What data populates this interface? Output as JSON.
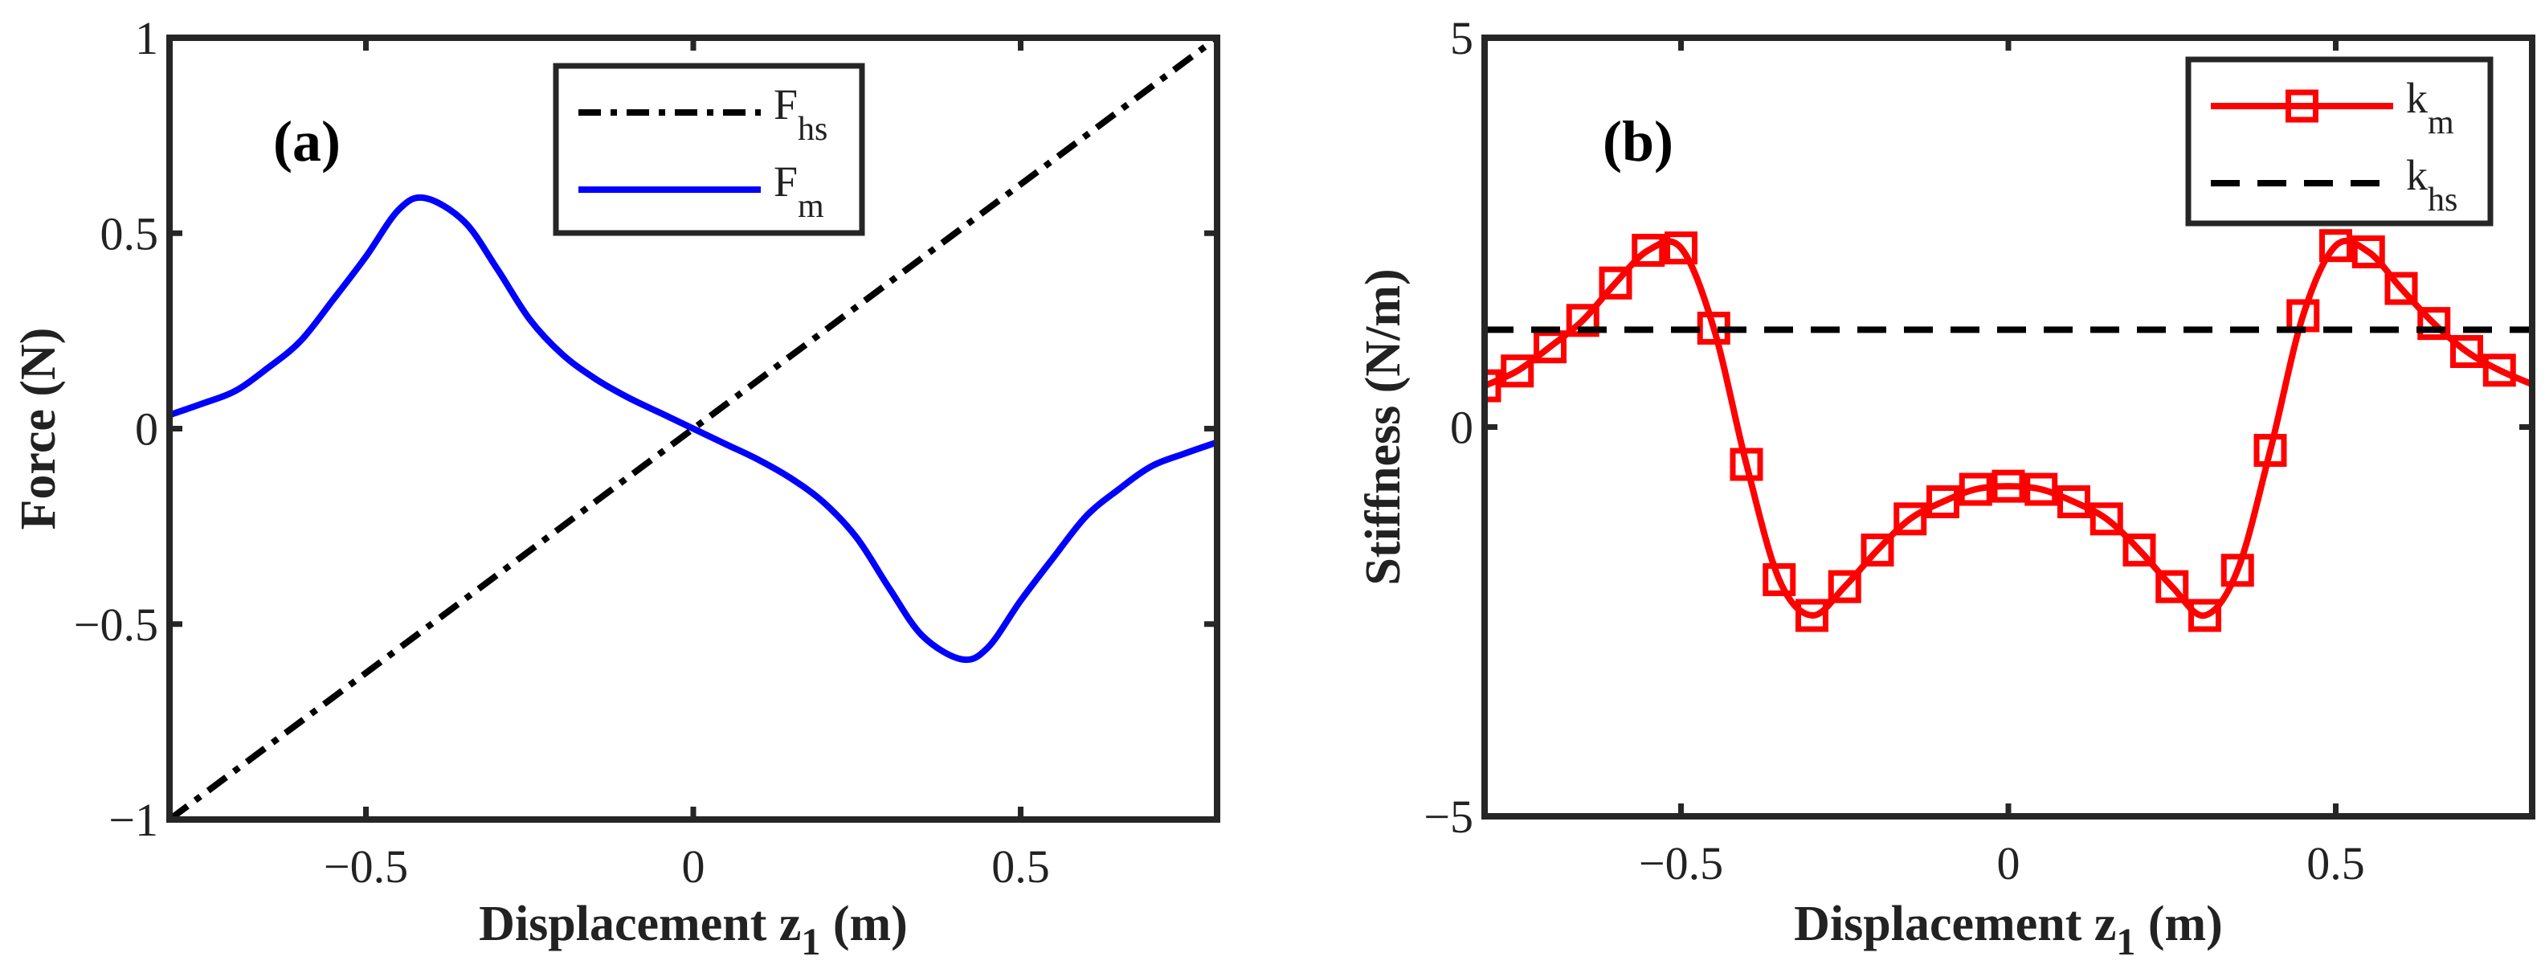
{
  "chart_data": [
    {
      "type": "line",
      "panel_label": "(a)",
      "xlabel": "Displacement z",
      "xlabel_sub": "1",
      "xlabel_unit": " (m)",
      "ylabel": "Force (N)",
      "xlim": [
        -0.8,
        0.8
      ],
      "ylim": [
        -1,
        1
      ],
      "xticks": [
        -0.5,
        0,
        0.5
      ],
      "xtick_labels": [
        "−0.5",
        "0",
        "0.5"
      ],
      "yticks": [
        -1,
        -0.5,
        0,
        0.5,
        1
      ],
      "ytick_labels": [
        "−1",
        "−0.5",
        "0",
        "0.5",
        "1"
      ],
      "grid": false,
      "legend_position": "top-center",
      "series": [
        {
          "name": "F",
          "name_sub": "hs",
          "color": "#000000",
          "style": "dash-dot",
          "x": [
            -0.8,
            0.8
          ],
          "y": [
            -1,
            1
          ]
        },
        {
          "name": "F",
          "name_sub": "m",
          "color": "#0000FF",
          "style": "solid",
          "x": [
            -0.8,
            -0.75,
            -0.7,
            -0.65,
            -0.6,
            -0.55,
            -0.5,
            -0.45,
            -0.41,
            -0.35,
            -0.3,
            -0.25,
            -0.2,
            -0.15,
            -0.1,
            -0.05,
            0,
            0.05,
            0.1,
            0.15,
            0.2,
            0.25,
            0.3,
            0.35,
            0.41,
            0.45,
            0.5,
            0.55,
            0.6,
            0.65,
            0.7,
            0.75,
            0.8
          ],
          "y": [
            0.035,
            0.064,
            0.096,
            0.155,
            0.224,
            0.33,
            0.44,
            0.56,
            0.59,
            0.53,
            0.41,
            0.28,
            0.19,
            0.128,
            0.08,
            0.04,
            0,
            -0.04,
            -0.08,
            -0.128,
            -0.19,
            -0.28,
            -0.41,
            -0.53,
            -0.59,
            -0.56,
            -0.44,
            -0.33,
            -0.224,
            -0.155,
            -0.096,
            -0.064,
            -0.035
          ]
        }
      ]
    },
    {
      "type": "line",
      "panel_label": "(b)",
      "xlabel": "Displacement z",
      "xlabel_sub": "1",
      "xlabel_unit": " (m)",
      "ylabel": "Stiffness (N/m)",
      "xlim": [
        -0.8,
        0.8
      ],
      "ylim": [
        -5,
        5
      ],
      "xticks": [
        -0.5,
        0,
        0.5
      ],
      "xtick_labels": [
        "−0.5",
        "0",
        "0.5"
      ],
      "yticks": [
        -5,
        0,
        5
      ],
      "ytick_labels": [
        "−5",
        "0",
        "5"
      ],
      "grid": false,
      "legend_position": "top-right",
      "series": [
        {
          "name": "k",
          "name_sub": "m",
          "color": "#FF0000",
          "style": "solid",
          "marker": "square",
          "x": [
            -0.8,
            -0.75,
            -0.7,
            -0.65,
            -0.6,
            -0.55,
            -0.5,
            -0.45,
            -0.4,
            -0.35,
            -0.3,
            -0.25,
            -0.2,
            -0.15,
            -0.1,
            -0.05,
            0,
            0.05,
            0.1,
            0.15,
            0.2,
            0.25,
            0.3,
            0.35,
            0.4,
            0.45,
            0.5,
            0.55,
            0.6,
            0.65,
            0.7,
            0.75
          ],
          "y": [
            0.53,
            0.72,
            1.03,
            1.37,
            1.85,
            2.27,
            2.3,
            1.27,
            -0.48,
            -1.96,
            -2.42,
            -2.05,
            -1.58,
            -1.18,
            -0.96,
            -0.8,
            -0.76,
            -0.8,
            -0.96,
            -1.18,
            -1.58,
            -2.05,
            -2.42,
            -1.84,
            -0.3,
            1.43,
            2.33,
            2.25,
            1.78,
            1.33,
            0.97,
            0.73
          ],
          "line_end": [
            0.8,
            0.55
          ]
        },
        {
          "name": "k",
          "name_sub": "hs",
          "color": "#000000",
          "style": "dashed",
          "x": [
            -0.8,
            0.8
          ],
          "y": [
            1.25,
            1.25
          ]
        }
      ]
    }
  ]
}
